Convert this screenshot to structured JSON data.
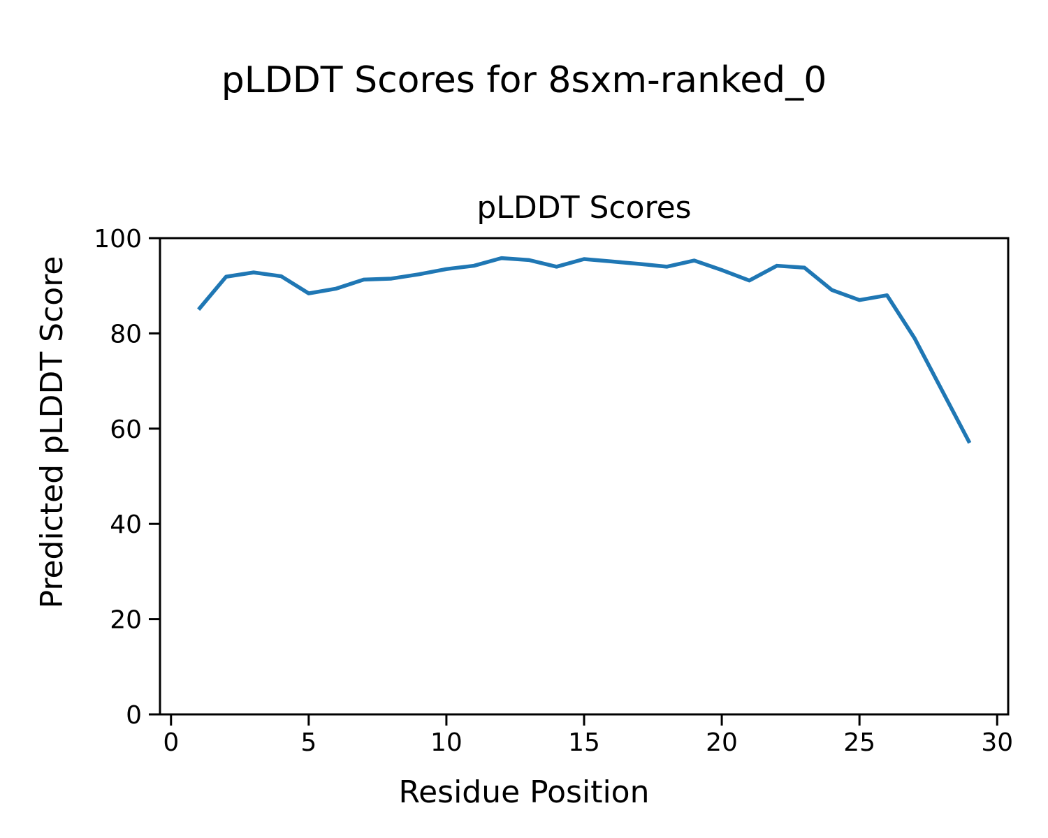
{
  "figure": {
    "suptitle": "pLDDT Scores for 8sxm-ranked_0",
    "axes_title": "pLDDT Scores",
    "xlabel": "Residue Position",
    "ylabel": "Predicted pLDDT Score"
  },
  "chart_data": {
    "type": "line",
    "title": "pLDDT Scores",
    "suptitle": "pLDDT Scores for 8sxm-ranked_0",
    "xlabel": "Residue Position",
    "ylabel": "Predicted pLDDT Score",
    "x": [
      1,
      2,
      3,
      4,
      5,
      6,
      7,
      8,
      9,
      10,
      11,
      12,
      13,
      14,
      15,
      16,
      17,
      18,
      19,
      20,
      21,
      22,
      23,
      24,
      25,
      26,
      27,
      28,
      29
    ],
    "values": [
      85.0,
      91.9,
      92.8,
      92.0,
      88.4,
      89.4,
      91.3,
      91.5,
      92.4,
      93.5,
      94.2,
      95.8,
      95.4,
      94.0,
      95.6,
      95.1,
      94.6,
      94.0,
      95.3,
      93.3,
      91.1,
      94.2,
      93.8,
      89.1,
      87.0,
      88.0,
      79.0,
      68.0,
      57.0
    ],
    "xlim": [
      -0.4,
      30.4
    ],
    "ylim": [
      0,
      100
    ],
    "xticks": [
      0,
      5,
      10,
      15,
      20,
      25,
      30
    ],
    "yticks": [
      0,
      20,
      40,
      60,
      80,
      100
    ],
    "line_color": "#1f77b4",
    "spine_color": "#000000",
    "grid": false,
    "legend": null
  }
}
